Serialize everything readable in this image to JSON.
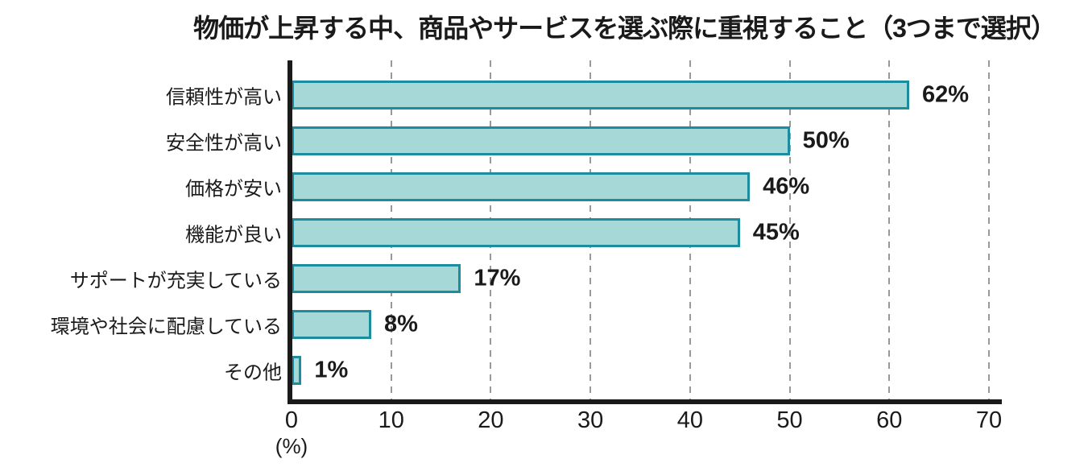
{
  "chart_data": {
    "type": "bar",
    "orientation": "horizontal",
    "title": "物価が上昇する中、商品やサービスを選ぶ際に重視すること（3つまで選択）",
    "categories": [
      "信頼性が高い",
      "安全性が高い",
      "価格が安い",
      "機能が良い",
      "サポートが充実している",
      "環境や社会に配慮している",
      "その他"
    ],
    "values": [
      62,
      50,
      46,
      45,
      17,
      8,
      1
    ],
    "value_labels": [
      "62%",
      "50%",
      "46%",
      "45%",
      "17%",
      "8%",
      "1%"
    ],
    "xlabel": "(%)",
    "xlim": [
      0,
      70
    ],
    "xticks": [
      0,
      10,
      20,
      30,
      40,
      50,
      60,
      70
    ],
    "grid": "vertical-dashed",
    "legend": "none",
    "colors": {
      "bar_fill": "#a6d8d8",
      "bar_border": "#1c8c9e",
      "gridline": "#999999",
      "axis": "#1a1a1a",
      "text": "#1a1a1a",
      "background": "#ffffff"
    }
  }
}
